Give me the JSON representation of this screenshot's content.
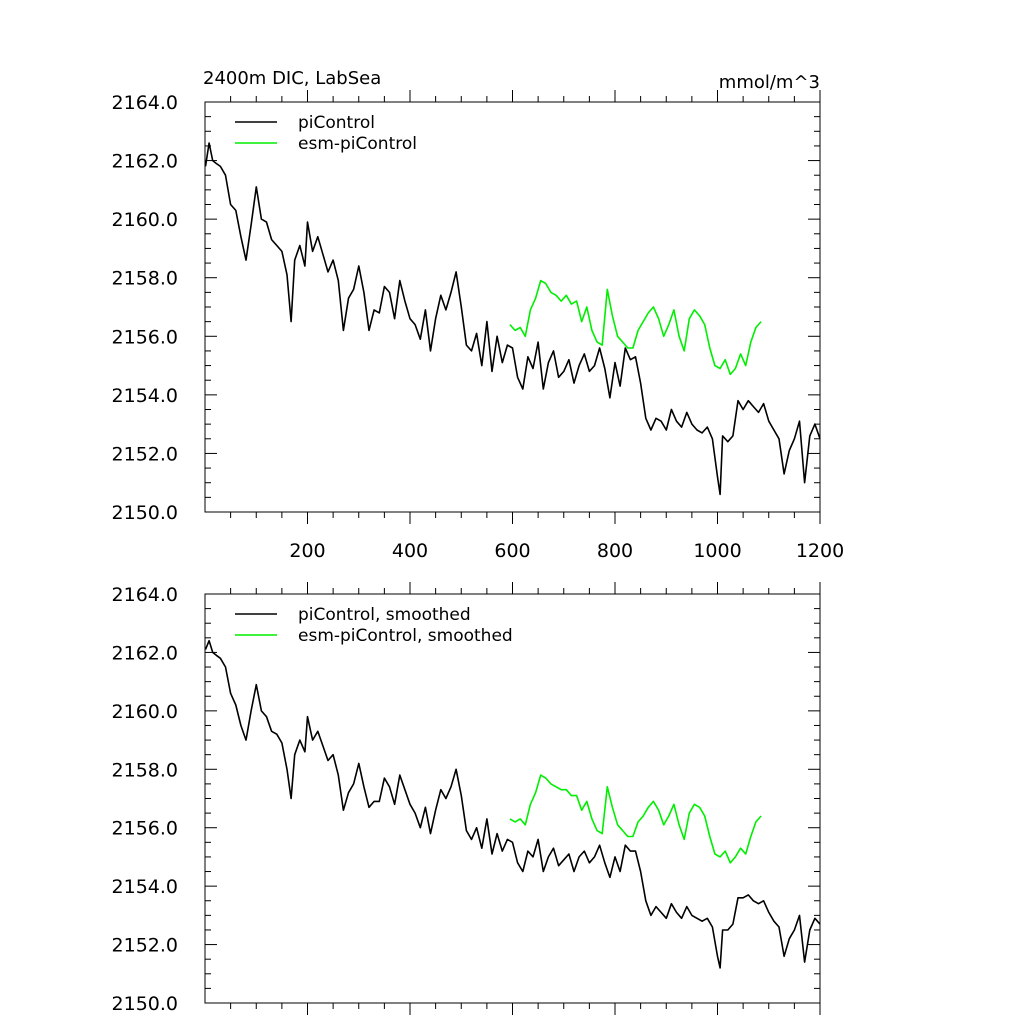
{
  "chart_data": [
    {
      "type": "line",
      "title": "2400m DIC, LabSea",
      "units_label": "mmol/m^3",
      "xlim": [
        0,
        1200
      ],
      "ylim": [
        2150,
        2164
      ],
      "xticks": [
        200,
        400,
        600,
        800,
        1000,
        1200
      ],
      "xtick_labels": [
        "200",
        "400",
        "600",
        "800",
        "1000",
        "1200"
      ],
      "yticks": [
        2150,
        2152,
        2154,
        2156,
        2158,
        2160,
        2162,
        2164
      ],
      "ytick_labels": [
        "2150.0",
        "2152.0",
        "2154.0",
        "2156.0",
        "2158.0",
        "2160.0",
        "2162.0",
        "2164.0"
      ],
      "legend_position": "top-left",
      "series": [
        {
          "name": "piControl",
          "color": "#000000",
          "x": [
            1,
            8,
            15,
            22,
            30,
            40,
            50,
            60,
            70,
            80,
            90,
            100,
            110,
            120,
            130,
            140,
            150,
            160,
            168,
            175,
            185,
            195,
            200,
            210,
            220,
            230,
            240,
            250,
            260,
            270,
            280,
            290,
            300,
            310,
            320,
            330,
            340,
            350,
            360,
            370,
            380,
            390,
            400,
            410,
            420,
            430,
            440,
            450,
            460,
            470,
            480,
            490,
            500,
            510,
            520,
            530,
            540,
            550,
            560,
            570,
            580,
            590,
            600,
            610,
            620,
            630,
            640,
            650,
            660,
            670,
            680,
            690,
            700,
            710,
            720,
            730,
            740,
            750,
            760,
            770,
            780,
            790,
            800,
            810,
            820,
            830,
            840,
            850,
            860,
            870,
            880,
            890,
            900,
            910,
            920,
            930,
            940,
            950,
            960,
            970,
            980,
            990,
            1000,
            1005,
            1010,
            1020,
            1030,
            1040,
            1050,
            1060,
            1070,
            1080,
            1090,
            1100,
            1110,
            1120,
            1130,
            1140,
            1150,
            1160,
            1170,
            1180,
            1190,
            1200
          ],
          "y": [
            2161.8,
            2162.6,
            2162.0,
            2161.9,
            2161.8,
            2161.5,
            2160.5,
            2160.3,
            2159.4,
            2158.6,
            2159.8,
            2161.1,
            2160.0,
            2159.9,
            2159.3,
            2159.1,
            2158.9,
            2158.1,
            2156.5,
            2158.6,
            2159.1,
            2158.4,
            2159.9,
            2158.9,
            2159.4,
            2158.8,
            2158.2,
            2158.6,
            2157.9,
            2156.2,
            2157.3,
            2157.6,
            2158.4,
            2157.5,
            2156.2,
            2156.9,
            2156.8,
            2157.7,
            2157.5,
            2156.6,
            2157.9,
            2157.2,
            2156.6,
            2156.4,
            2155.9,
            2156.9,
            2155.5,
            2156.6,
            2157.4,
            2156.9,
            2157.5,
            2158.2,
            2157.0,
            2155.7,
            2155.5,
            2156.1,
            2155.0,
            2156.5,
            2154.8,
            2156.0,
            2155.1,
            2155.7,
            2155.6,
            2154.6,
            2154.2,
            2155.3,
            2154.9,
            2155.8,
            2154.2,
            2155.1,
            2155.5,
            2154.6,
            2154.8,
            2155.2,
            2154.4,
            2155.0,
            2155.4,
            2154.8,
            2155.0,
            2155.6,
            2154.9,
            2153.9,
            2155.1,
            2154.3,
            2155.6,
            2155.2,
            2155.3,
            2154.4,
            2153.2,
            2152.8,
            2153.2,
            2153.1,
            2152.8,
            2153.5,
            2153.1,
            2152.9,
            2153.4,
            2153.0,
            2152.8,
            2152.7,
            2152.9,
            2152.5,
            2151.2,
            2150.6,
            2152.6,
            2152.4,
            2152.6,
            2153.8,
            2153.5,
            2153.8,
            2153.6,
            2153.4,
            2153.7,
            2153.1,
            2152.8,
            2152.5,
            2151.3,
            2152.1,
            2152.5,
            2153.1,
            2151.0,
            2152.6,
            2153.0,
            2152.5
          ]
        },
        {
          "name": "esm-piControl",
          "color": "#00ee00",
          "x": [
            595,
            605,
            615,
            625,
            635,
            645,
            655,
            665,
            675,
            685,
            695,
            705,
            715,
            725,
            735,
            745,
            755,
            765,
            775,
            785,
            795,
            805,
            815,
            825,
            835,
            845,
            855,
            865,
            875,
            885,
            895,
            905,
            915,
            925,
            935,
            945,
            955,
            965,
            975,
            985,
            995,
            1005,
            1015,
            1025,
            1035,
            1045,
            1055,
            1065,
            1075,
            1085
          ],
          "y": [
            2156.4,
            2156.2,
            2156.3,
            2156.0,
            2156.9,
            2157.3,
            2157.9,
            2157.8,
            2157.5,
            2157.4,
            2157.2,
            2157.4,
            2157.1,
            2157.2,
            2156.5,
            2157.0,
            2156.2,
            2155.8,
            2155.7,
            2157.6,
            2156.7,
            2156.0,
            2155.8,
            2155.6,
            2155.6,
            2156.2,
            2156.5,
            2156.8,
            2157.0,
            2156.6,
            2156.0,
            2156.4,
            2156.9,
            2156.0,
            2155.5,
            2156.6,
            2156.9,
            2156.7,
            2156.4,
            2155.6,
            2155.0,
            2154.9,
            2155.2,
            2154.7,
            2154.9,
            2155.4,
            2155.0,
            2155.8,
            2156.3,
            2156.5
          ]
        }
      ]
    },
    {
      "type": "line",
      "xlim": [
        0,
        1200
      ],
      "ylim": [
        2150,
        2164
      ],
      "xticks": [
        200,
        400,
        600,
        800,
        1000,
        1200
      ],
      "yticks": [
        2150,
        2152,
        2154,
        2156,
        2158,
        2160,
        2162,
        2164
      ],
      "ytick_labels": [
        "2150.0",
        "2152.0",
        "2154.0",
        "2156.0",
        "2158.0",
        "2160.0",
        "2162.0",
        "2164.0"
      ],
      "legend_position": "top-left",
      "series": [
        {
          "name": "piControl, smoothed",
          "color": "#000000",
          "x": [
            1,
            8,
            15,
            22,
            30,
            40,
            50,
            60,
            70,
            80,
            90,
            100,
            110,
            120,
            130,
            140,
            150,
            160,
            168,
            175,
            185,
            195,
            200,
            210,
            220,
            230,
            240,
            250,
            260,
            270,
            280,
            290,
            300,
            310,
            320,
            330,
            340,
            350,
            360,
            370,
            380,
            390,
            400,
            410,
            420,
            430,
            440,
            450,
            460,
            470,
            480,
            490,
            500,
            510,
            520,
            530,
            540,
            550,
            560,
            570,
            580,
            590,
            600,
            610,
            620,
            630,
            640,
            650,
            660,
            670,
            680,
            690,
            700,
            710,
            720,
            730,
            740,
            750,
            760,
            770,
            780,
            790,
            800,
            810,
            820,
            830,
            840,
            850,
            860,
            870,
            880,
            890,
            900,
            910,
            920,
            930,
            940,
            950,
            960,
            970,
            980,
            990,
            1000,
            1005,
            1010,
            1020,
            1030,
            1040,
            1050,
            1060,
            1070,
            1080,
            1090,
            1100,
            1110,
            1120,
            1130,
            1140,
            1150,
            1160,
            1170,
            1180,
            1190,
            1200
          ],
          "y": [
            2162.1,
            2162.4,
            2162.0,
            2161.9,
            2161.8,
            2161.5,
            2160.6,
            2160.2,
            2159.5,
            2159.0,
            2160.0,
            2160.9,
            2160.0,
            2159.8,
            2159.3,
            2159.2,
            2158.9,
            2158.0,
            2157.0,
            2158.5,
            2159.0,
            2158.6,
            2159.8,
            2159.0,
            2159.3,
            2158.8,
            2158.3,
            2158.5,
            2157.8,
            2156.6,
            2157.2,
            2157.5,
            2158.2,
            2157.4,
            2156.7,
            2156.9,
            2156.9,
            2157.7,
            2157.4,
            2156.8,
            2157.8,
            2157.3,
            2156.8,
            2156.5,
            2156.0,
            2156.7,
            2155.8,
            2156.6,
            2157.3,
            2157.0,
            2157.4,
            2158.0,
            2157.1,
            2155.9,
            2155.6,
            2156.0,
            2155.3,
            2156.3,
            2155.1,
            2155.8,
            2155.2,
            2155.6,
            2155.5,
            2154.8,
            2154.5,
            2155.2,
            2155.0,
            2155.6,
            2154.5,
            2155.0,
            2155.3,
            2154.7,
            2154.9,
            2155.1,
            2154.5,
            2155.0,
            2155.2,
            2154.8,
            2155.0,
            2155.4,
            2154.8,
            2154.3,
            2155.0,
            2154.5,
            2155.4,
            2155.2,
            2155.2,
            2154.5,
            2153.5,
            2153.0,
            2153.3,
            2153.1,
            2152.9,
            2153.4,
            2153.1,
            2152.9,
            2153.3,
            2153.0,
            2152.9,
            2152.8,
            2152.9,
            2152.6,
            2151.6,
            2151.2,
            2152.5,
            2152.5,
            2152.7,
            2153.6,
            2153.6,
            2153.7,
            2153.5,
            2153.4,
            2153.5,
            2153.1,
            2152.8,
            2152.6,
            2151.6,
            2152.2,
            2152.5,
            2153.0,
            2151.4,
            2152.5,
            2152.9,
            2152.7
          ]
        },
        {
          "name": "esm-piControl, smoothed",
          "color": "#00ee00",
          "x": [
            595,
            605,
            615,
            625,
            635,
            645,
            655,
            665,
            675,
            685,
            695,
            705,
            715,
            725,
            735,
            745,
            755,
            765,
            775,
            785,
            795,
            805,
            815,
            825,
            835,
            845,
            855,
            865,
            875,
            885,
            895,
            905,
            915,
            925,
            935,
            945,
            955,
            965,
            975,
            985,
            995,
            1005,
            1015,
            1025,
            1035,
            1045,
            1055,
            1065,
            1075,
            1085
          ],
          "y": [
            2156.3,
            2156.2,
            2156.3,
            2156.1,
            2156.8,
            2157.2,
            2157.8,
            2157.7,
            2157.5,
            2157.4,
            2157.3,
            2157.3,
            2157.1,
            2157.1,
            2156.6,
            2156.9,
            2156.3,
            2155.9,
            2155.8,
            2157.4,
            2156.7,
            2156.1,
            2155.9,
            2155.7,
            2155.7,
            2156.2,
            2156.4,
            2156.7,
            2156.9,
            2156.6,
            2156.1,
            2156.4,
            2156.8,
            2156.1,
            2155.6,
            2156.5,
            2156.8,
            2156.7,
            2156.4,
            2155.7,
            2155.1,
            2155.0,
            2155.2,
            2154.8,
            2155.0,
            2155.3,
            2155.1,
            2155.7,
            2156.2,
            2156.4
          ]
        }
      ]
    }
  ]
}
